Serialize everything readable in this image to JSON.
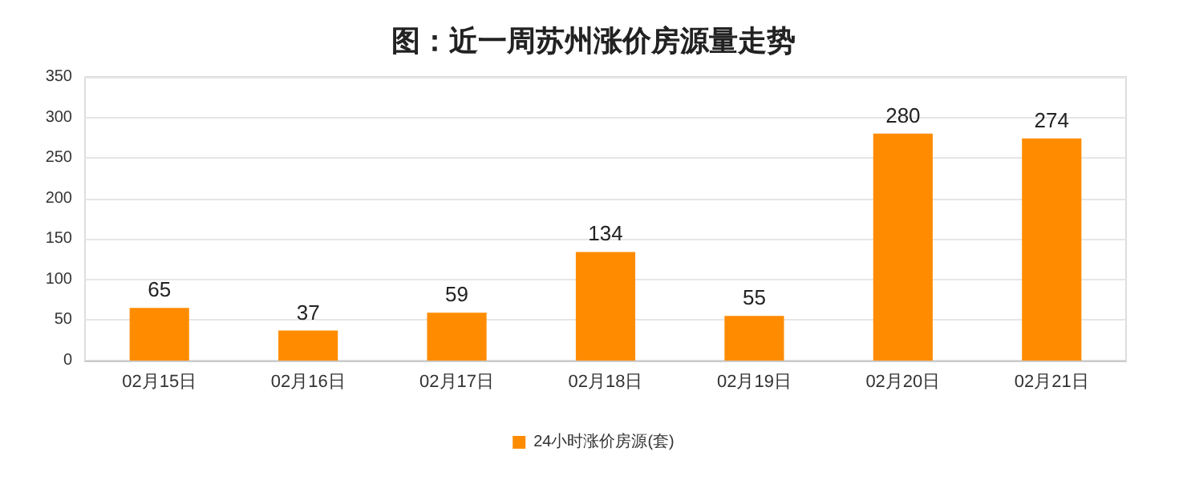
{
  "chart_data": {
    "type": "bar",
    "title": "图：近一周苏州涨价房源量走势",
    "categories": [
      "02月15日",
      "02月16日",
      "02月17日",
      "02月18日",
      "02月19日",
      "02月20日",
      "02月21日"
    ],
    "series": [
      {
        "name": "24小时涨价房源(套)",
        "color": "#ff8c00",
        "values": [
          65,
          37,
          59,
          134,
          55,
          280,
          274
        ]
      }
    ],
    "ylim": [
      0,
      350
    ],
    "yticks": [
      0,
      50,
      100,
      150,
      200,
      250,
      300,
      350
    ],
    "grid": "y",
    "legend": "bottom",
    "data_labels": true
  }
}
